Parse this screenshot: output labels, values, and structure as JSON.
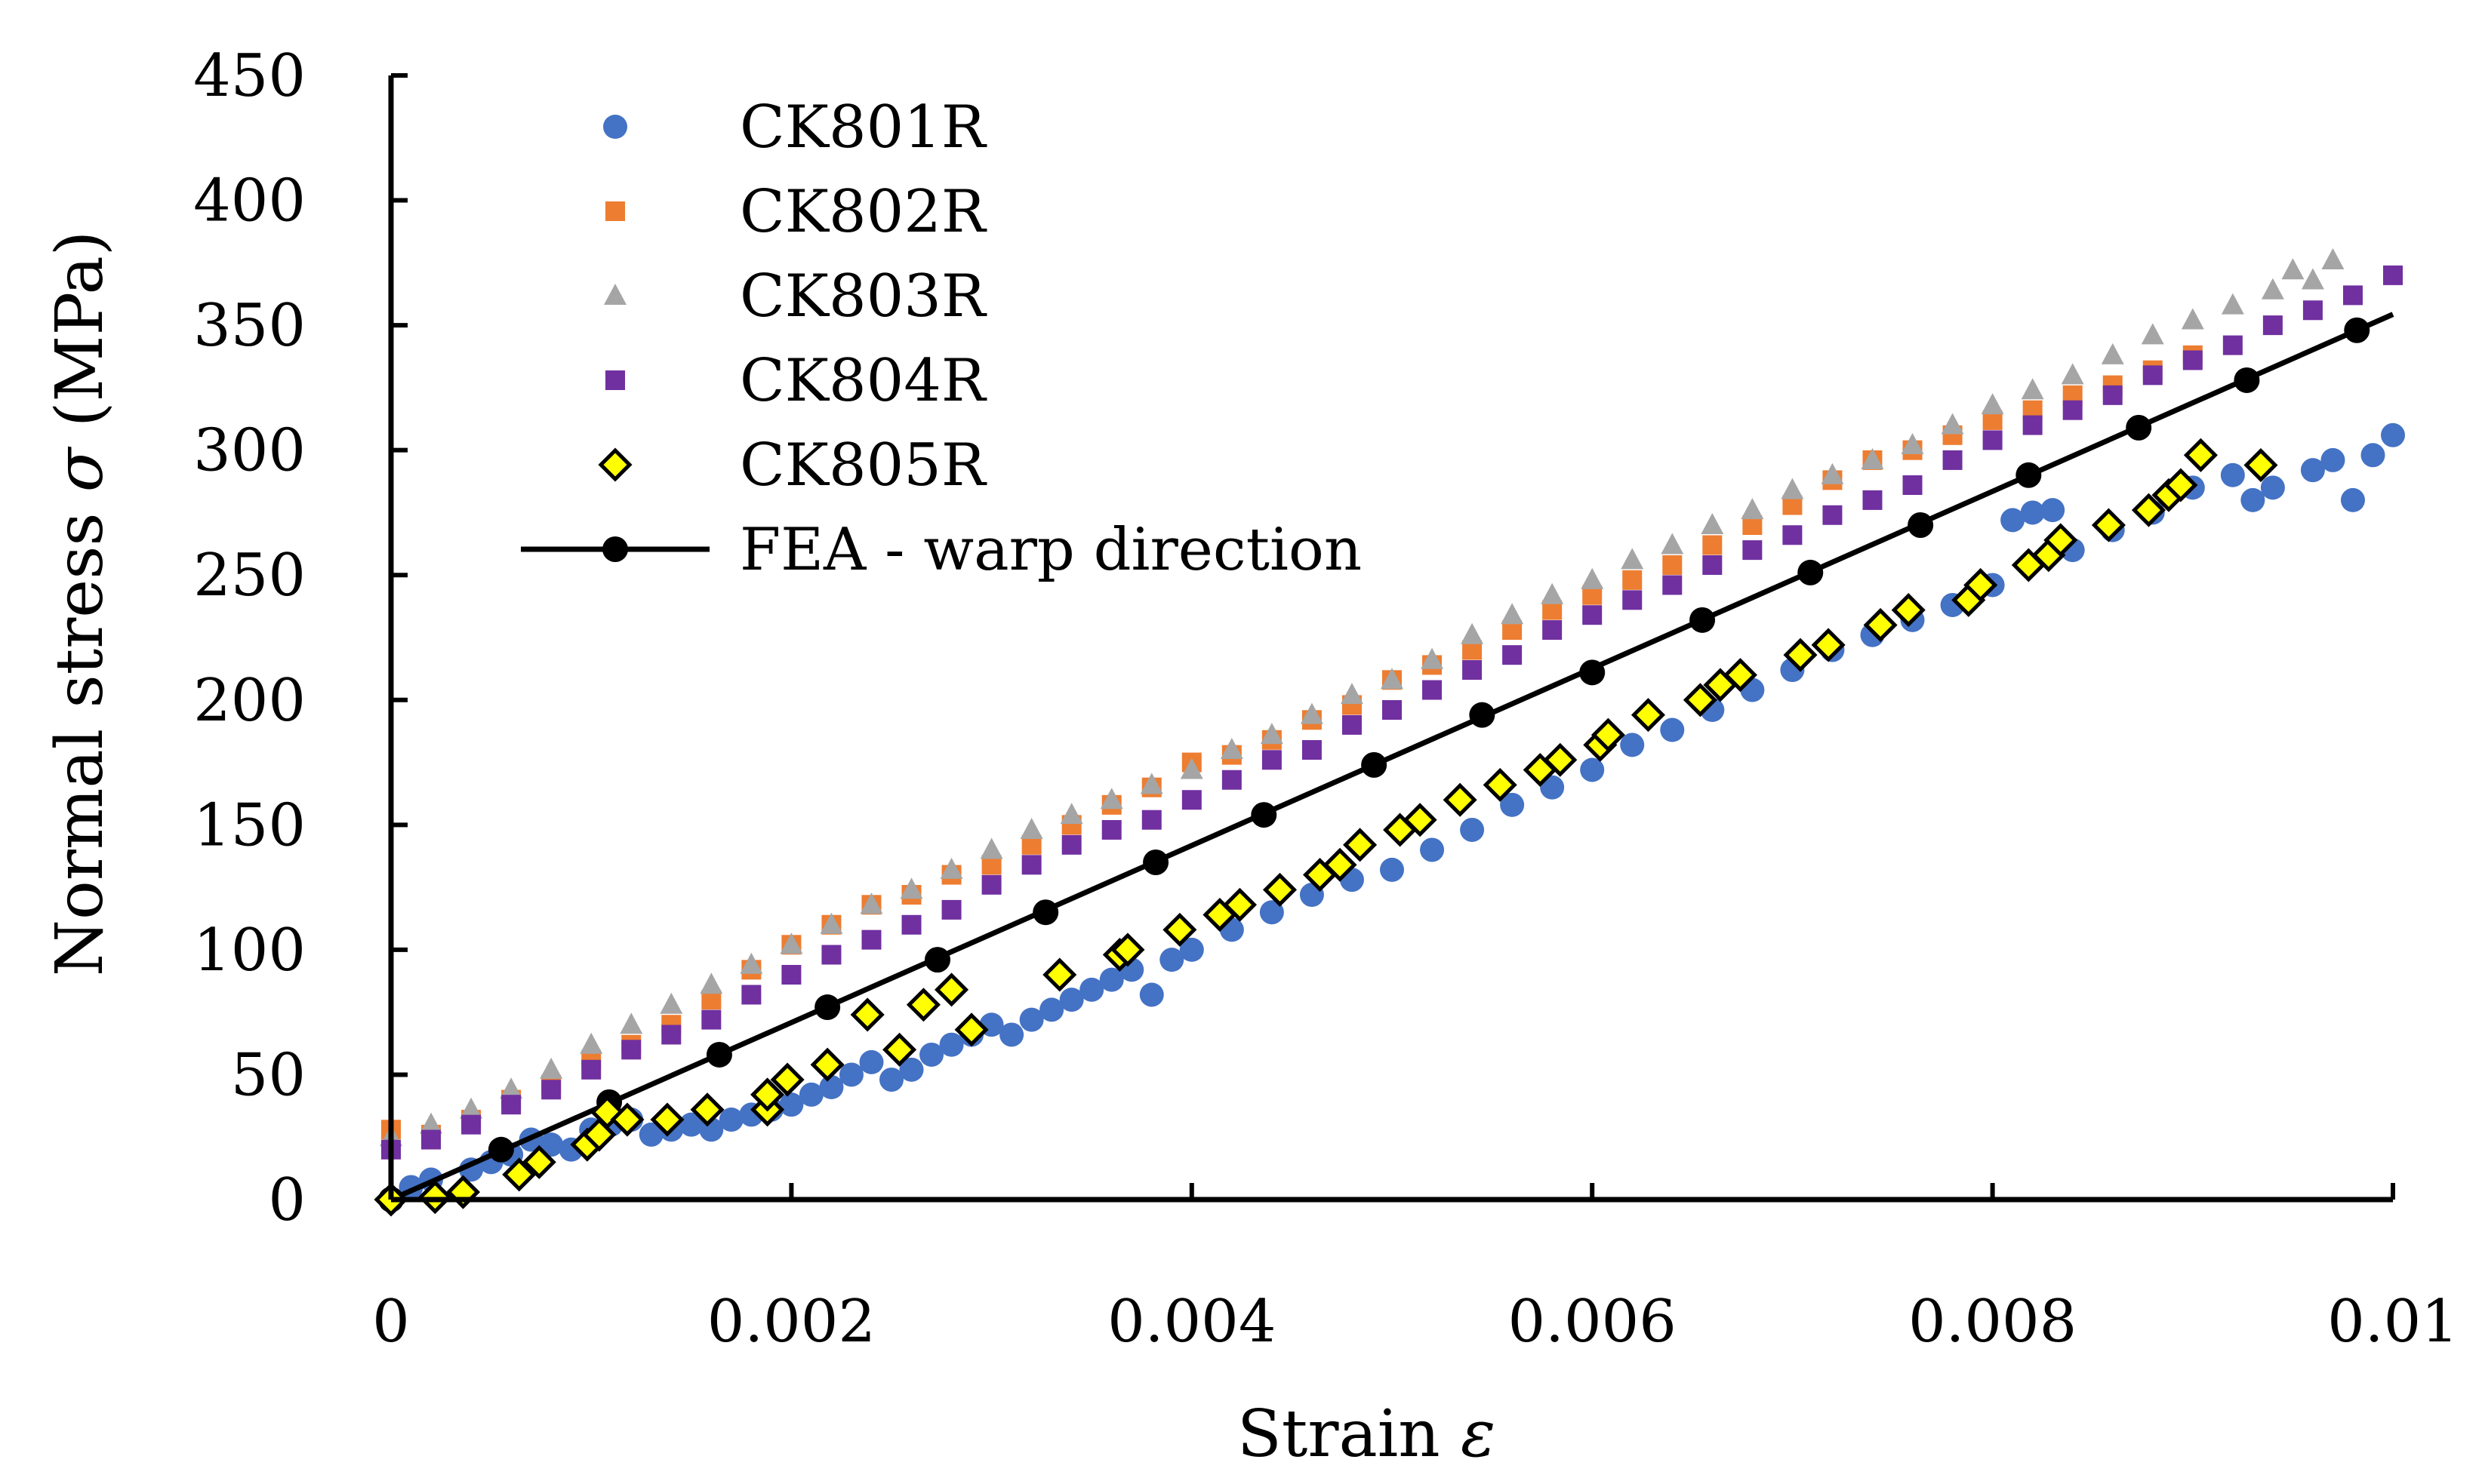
{
  "chart_data": {
    "type": "scatter",
    "xlabel_text": "Strain",
    "xlabel_symbol": "ε",
    "ylabel_text": "Normal stress",
    "ylabel_symbol": "σ",
    "ylabel_unit": "(MPa)",
    "xlim": [
      0,
      0.01
    ],
    "ylim": [
      0,
      450
    ],
    "x_ticks": [
      0,
      0.002,
      0.004,
      0.006,
      0.008,
      0.01
    ],
    "x_tick_labels": [
      "0",
      "0.002",
      "0.004",
      "0.006",
      "0.008",
      "0.01"
    ],
    "y_ticks": [
      0,
      50,
      100,
      150,
      200,
      250,
      300,
      350,
      400,
      450
    ],
    "y_tick_labels": [
      "0",
      "50",
      "100",
      "150",
      "200",
      "250",
      "300",
      "350",
      "400",
      "450"
    ],
    "grid": false,
    "legend_position": "top-left",
    "series": [
      {
        "name": "CK801R",
        "marker": "circle",
        "color": "#4472C4",
        "points": [
          [
            0,
            0
          ],
          [
            0.0001,
            5
          ],
          [
            0.0002,
            8
          ],
          [
            0.0004,
            12
          ],
          [
            0.0005,
            15
          ],
          [
            0.0006,
            18
          ],
          [
            0.0007,
            24
          ],
          [
            0.0008,
            22
          ],
          [
            0.0009,
            20
          ],
          [
            0.001,
            28
          ],
          [
            0.0011,
            30
          ],
          [
            0.0012,
            32
          ],
          [
            0.0013,
            26
          ],
          [
            0.0014,
            28
          ],
          [
            0.0015,
            30
          ],
          [
            0.0016,
            28
          ],
          [
            0.0017,
            32
          ],
          [
            0.0018,
            34
          ],
          [
            0.0019,
            36
          ],
          [
            0.002,
            38
          ],
          [
            0.0021,
            42
          ],
          [
            0.0022,
            45
          ],
          [
            0.0023,
            50
          ],
          [
            0.0024,
            55
          ],
          [
            0.0025,
            48
          ],
          [
            0.0026,
            52
          ],
          [
            0.0027,
            58
          ],
          [
            0.0028,
            62
          ],
          [
            0.0029,
            66
          ],
          [
            0.003,
            70
          ],
          [
            0.0031,
            66
          ],
          [
            0.0032,
            72
          ],
          [
            0.0033,
            76
          ],
          [
            0.0034,
            80
          ],
          [
            0.0035,
            84
          ],
          [
            0.0036,
            88
          ],
          [
            0.0037,
            92
          ],
          [
            0.0038,
            82
          ],
          [
            0.0039,
            96
          ],
          [
            0.004,
            100
          ],
          [
            0.0042,
            108
          ],
          [
            0.0044,
            115
          ],
          [
            0.0046,
            122
          ],
          [
            0.0048,
            128
          ],
          [
            0.005,
            132
          ],
          [
            0.0052,
            140
          ],
          [
            0.0054,
            148
          ],
          [
            0.0056,
            158
          ],
          [
            0.0058,
            165
          ],
          [
            0.006,
            172
          ],
          [
            0.0062,
            182
          ],
          [
            0.0064,
            188
          ],
          [
            0.0066,
            196
          ],
          [
            0.0068,
            204
          ],
          [
            0.007,
            212
          ],
          [
            0.0072,
            220
          ],
          [
            0.0074,
            226
          ],
          [
            0.0076,
            232
          ],
          [
            0.0078,
            238
          ],
          [
            0.008,
            246
          ],
          [
            0.0081,
            272
          ],
          [
            0.0082,
            275
          ],
          [
            0.0083,
            276
          ],
          [
            0.0084,
            260
          ],
          [
            0.0086,
            268
          ],
          [
            0.0088,
            275
          ],
          [
            0.009,
            285
          ],
          [
            0.0092,
            290
          ],
          [
            0.0093,
            280
          ],
          [
            0.0094,
            285
          ],
          [
            0.0096,
            292
          ],
          [
            0.0097,
            296
          ],
          [
            0.0098,
            280
          ],
          [
            0.0099,
            298
          ],
          [
            0.01,
            306
          ]
        ]
      },
      {
        "name": "CK802R",
        "marker": "square",
        "color": "#ED7D31",
        "points": [
          [
            0,
            28
          ],
          [
            0.0002,
            26
          ],
          [
            0.0004,
            32
          ],
          [
            0.0006,
            40
          ],
          [
            0.0008,
            46
          ],
          [
            0.001,
            56
          ],
          [
            0.0012,
            62
          ],
          [
            0.0014,
            70
          ],
          [
            0.0016,
            80
          ],
          [
            0.0018,
            92
          ],
          [
            0.002,
            102
          ],
          [
            0.0022,
            110
          ],
          [
            0.0024,
            118
          ],
          [
            0.0026,
            122
          ],
          [
            0.0028,
            130
          ],
          [
            0.003,
            134
          ],
          [
            0.0032,
            142
          ],
          [
            0.0034,
            150
          ],
          [
            0.0036,
            158
          ],
          [
            0.0038,
            165
          ],
          [
            0.004,
            175
          ],
          [
            0.0042,
            178
          ],
          [
            0.0044,
            184
          ],
          [
            0.0046,
            192
          ],
          [
            0.0048,
            198
          ],
          [
            0.005,
            208
          ],
          [
            0.0052,
            214
          ],
          [
            0.0054,
            220
          ],
          [
            0.0056,
            228
          ],
          [
            0.0058,
            236
          ],
          [
            0.006,
            242
          ],
          [
            0.0062,
            248
          ],
          [
            0.0064,
            254
          ],
          [
            0.0066,
            262
          ],
          [
            0.0068,
            270
          ],
          [
            0.007,
            278
          ],
          [
            0.0072,
            288
          ],
          [
            0.0074,
            296
          ],
          [
            0.0076,
            300
          ],
          [
            0.0078,
            306
          ],
          [
            0.008,
            312
          ],
          [
            0.0082,
            316
          ],
          [
            0.0084,
            322
          ],
          [
            0.0086,
            326
          ],
          [
            0.0088,
            332
          ],
          [
            0.009,
            338
          ]
        ]
      },
      {
        "name": "CK803R",
        "marker": "triangle",
        "color": "#A5A5A5",
        "points": [
          [
            0,
            25
          ],
          [
            0.0002,
            30
          ],
          [
            0.0004,
            36
          ],
          [
            0.0006,
            44
          ],
          [
            0.0008,
            52
          ],
          [
            0.001,
            62
          ],
          [
            0.0012,
            70
          ],
          [
            0.0014,
            78
          ],
          [
            0.0016,
            86
          ],
          [
            0.0018,
            94
          ],
          [
            0.002,
            102
          ],
          [
            0.0022,
            110
          ],
          [
            0.0024,
            118
          ],
          [
            0.0026,
            124
          ],
          [
            0.0028,
            132
          ],
          [
            0.003,
            140
          ],
          [
            0.0032,
            148
          ],
          [
            0.0034,
            154
          ],
          [
            0.0036,
            160
          ],
          [
            0.0038,
            166
          ],
          [
            0.004,
            172
          ],
          [
            0.0042,
            180
          ],
          [
            0.0044,
            186
          ],
          [
            0.0046,
            194
          ],
          [
            0.0048,
            202
          ],
          [
            0.005,
            208
          ],
          [
            0.0052,
            216
          ],
          [
            0.0054,
            226
          ],
          [
            0.0056,
            234
          ],
          [
            0.0058,
            242
          ],
          [
            0.006,
            248
          ],
          [
            0.0062,
            256
          ],
          [
            0.0064,
            262
          ],
          [
            0.0066,
            270
          ],
          [
            0.0068,
            276
          ],
          [
            0.007,
            284
          ],
          [
            0.0072,
            290
          ],
          [
            0.0074,
            296
          ],
          [
            0.0076,
            302
          ],
          [
            0.0078,
            310
          ],
          [
            0.008,
            318
          ],
          [
            0.0082,
            324
          ],
          [
            0.0084,
            330
          ],
          [
            0.0086,
            338
          ],
          [
            0.0088,
            346
          ],
          [
            0.009,
            352
          ],
          [
            0.0092,
            358
          ],
          [
            0.0094,
            364
          ],
          [
            0.0095,
            372
          ],
          [
            0.0096,
            368
          ],
          [
            0.0097,
            376
          ]
        ]
      },
      {
        "name": "CK804R",
        "marker": "square",
        "color": "#7030A0",
        "points": [
          [
            0,
            20
          ],
          [
            0.0002,
            24
          ],
          [
            0.0004,
            30
          ],
          [
            0.0006,
            38
          ],
          [
            0.0008,
            44
          ],
          [
            0.001,
            52
          ],
          [
            0.0012,
            60
          ],
          [
            0.0014,
            66
          ],
          [
            0.0016,
            72
          ],
          [
            0.0018,
            82
          ],
          [
            0.002,
            90
          ],
          [
            0.0022,
            98
          ],
          [
            0.0024,
            104
          ],
          [
            0.0026,
            110
          ],
          [
            0.0028,
            116
          ],
          [
            0.003,
            126
          ],
          [
            0.0032,
            134
          ],
          [
            0.0034,
            142
          ],
          [
            0.0036,
            148
          ],
          [
            0.0038,
            152
          ],
          [
            0.004,
            160
          ],
          [
            0.0042,
            168
          ],
          [
            0.0044,
            176
          ],
          [
            0.0046,
            180
          ],
          [
            0.0048,
            190
          ],
          [
            0.005,
            196
          ],
          [
            0.0052,
            204
          ],
          [
            0.0054,
            212
          ],
          [
            0.0056,
            218
          ],
          [
            0.0058,
            228
          ],
          [
            0.006,
            234
          ],
          [
            0.0062,
            240
          ],
          [
            0.0064,
            246
          ],
          [
            0.0066,
            254
          ],
          [
            0.0068,
            260
          ],
          [
            0.007,
            266
          ],
          [
            0.0072,
            274
          ],
          [
            0.0074,
            280
          ],
          [
            0.0076,
            286
          ],
          [
            0.0078,
            296
          ],
          [
            0.008,
            304
          ],
          [
            0.0082,
            310
          ],
          [
            0.0084,
            316
          ],
          [
            0.0086,
            322
          ],
          [
            0.0088,
            330
          ],
          [
            0.009,
            336
          ],
          [
            0.0092,
            342
          ],
          [
            0.0094,
            350
          ],
          [
            0.0096,
            356
          ],
          [
            0.0098,
            362
          ],
          [
            0.01,
            370
          ]
        ]
      },
      {
        "name": "CK805R",
        "marker": "diamond",
        "color": "#FFFF00",
        "points": [
          [
            0,
            0
          ],
          [
            0.00022,
            1
          ],
          [
            0.00036,
            3
          ],
          [
            0.00064,
            10
          ],
          [
            0.00074,
            15
          ],
          [
            0.00098,
            22
          ],
          [
            0.00104,
            26
          ],
          [
            0.00108,
            35
          ],
          [
            0.00118,
            32
          ],
          [
            0.00138,
            32
          ],
          [
            0.00158,
            36
          ],
          [
            0.00188,
            36
          ],
          [
            0.00188,
            42
          ],
          [
            0.00198,
            48
          ],
          [
            0.00218,
            54
          ],
          [
            0.00238,
            74
          ],
          [
            0.00254,
            60
          ],
          [
            0.00266,
            78
          ],
          [
            0.0028,
            84
          ],
          [
            0.0029,
            68
          ],
          [
            0.00334,
            90
          ],
          [
            0.00364,
            98
          ],
          [
            0.00368,
            100
          ],
          [
            0.00394,
            108
          ],
          [
            0.00414,
            114
          ],
          [
            0.00424,
            118
          ],
          [
            0.00444,
            124
          ],
          [
            0.00464,
            130
          ],
          [
            0.00474,
            134
          ],
          [
            0.00484,
            142
          ],
          [
            0.00504,
            148
          ],
          [
            0.00514,
            152
          ],
          [
            0.00534,
            160
          ],
          [
            0.00554,
            166
          ],
          [
            0.00574,
            172
          ],
          [
            0.00584,
            176
          ],
          [
            0.00604,
            182
          ],
          [
            0.00608,
            186
          ],
          [
            0.00628,
            194
          ],
          [
            0.00654,
            200
          ],
          [
            0.00664,
            206
          ],
          [
            0.00674,
            210
          ],
          [
            0.00704,
            218
          ],
          [
            0.00718,
            222
          ],
          [
            0.00744,
            230
          ],
          [
            0.00758,
            236
          ],
          [
            0.00788,
            240
          ],
          [
            0.00794,
            246
          ],
          [
            0.00818,
            254
          ],
          [
            0.00828,
            258
          ],
          [
            0.00834,
            264
          ],
          [
            0.00858,
            270
          ],
          [
            0.00878,
            276
          ],
          [
            0.00888,
            282
          ],
          [
            0.00894,
            286
          ],
          [
            0.00904,
            298
          ],
          [
            0.00934,
            294
          ]
        ]
      },
      {
        "name": "FEA - warp direction",
        "marker": "circle",
        "line": true,
        "color": "#000000",
        "points": [
          [
            0,
            0
          ],
          [
            0.00055,
            20
          ],
          [
            0.00109,
            39
          ],
          [
            0.00164,
            58
          ],
          [
            0.00218,
            77
          ],
          [
            0.00273,
            96
          ],
          [
            0.00327,
            115
          ],
          [
            0.00382,
            135
          ],
          [
            0.00436,
            154
          ],
          [
            0.00491,
            174
          ],
          [
            0.00545,
            194
          ],
          [
            0.006,
            211
          ],
          [
            0.00655,
            232
          ],
          [
            0.00709,
            251
          ],
          [
            0.00764,
            270
          ],
          [
            0.00818,
            290
          ],
          [
            0.00873,
            309
          ],
          [
            0.00927,
            328
          ],
          [
            0.00982,
            348
          ]
        ]
      }
    ]
  }
}
